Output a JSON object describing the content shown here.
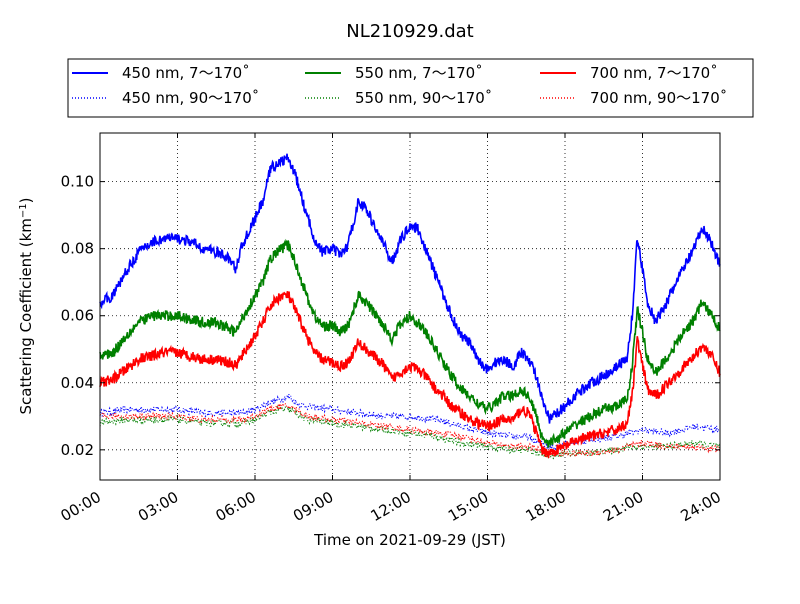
{
  "chart_data": {
    "type": "line",
    "title": "NL210929.dat",
    "xlabel": "Time on 2021-09-29 (JST)",
    "ylabel": "Scattering Coefficient (km",
    "ylabel_sup": "−1",
    "ylabel_close": ")",
    "x_unit": "hours",
    "xlim": [
      0,
      24
    ],
    "ylim": [
      0.011,
      0.1145
    ],
    "x_ticks": [
      0,
      3,
      6,
      9,
      12,
      15,
      18,
      21,
      24
    ],
    "x_tick_labels": [
      "00:00",
      "03:00",
      "06:00",
      "09:00",
      "12:00",
      "15:00",
      "18:00",
      "21:00",
      "24:00"
    ],
    "y_ticks": [
      0.02,
      0.04,
      0.06,
      0.08,
      0.1
    ],
    "y_tick_labels": [
      "0.02",
      "0.04",
      "0.06",
      "0.08",
      "0.10"
    ],
    "grid": true,
    "legend_position": "top",
    "legend_columns": 3,
    "series": [
      {
        "name": "450 nm, 7～170˚",
        "color": "#0000ff",
        "style": "solid",
        "x": [
          0,
          0.5,
          1,
          1.5,
          2,
          2.5,
          3,
          3.5,
          4,
          4.5,
          5,
          5.25,
          5.5,
          6,
          6.3,
          6.6,
          7,
          7.3,
          7.6,
          8,
          8.3,
          8.6,
          9,
          9.3,
          9.6,
          10,
          10.3,
          10.6,
          11,
          11.3,
          11.6,
          12,
          12.3,
          12.6,
          13,
          13.3,
          13.6,
          14,
          14.3,
          14.6,
          15,
          15.3,
          15.6,
          16,
          16.3,
          16.6,
          16.9,
          17.1,
          17.4,
          18,
          18.5,
          19,
          19.5,
          20,
          20.4,
          20.6,
          20.8,
          21,
          21.2,
          21.5,
          22,
          22.5,
          23,
          23.3,
          23.6,
          24
        ],
        "y": [
          0.064,
          0.066,
          0.073,
          0.079,
          0.082,
          0.083,
          0.083,
          0.082,
          0.08,
          0.079,
          0.077,
          0.074,
          0.081,
          0.089,
          0.094,
          0.104,
          0.106,
          0.107,
          0.101,
          0.09,
          0.083,
          0.079,
          0.08,
          0.078,
          0.081,
          0.094,
          0.092,
          0.087,
          0.081,
          0.076,
          0.082,
          0.087,
          0.086,
          0.08,
          0.072,
          0.066,
          0.06,
          0.054,
          0.052,
          0.047,
          0.044,
          0.046,
          0.047,
          0.045,
          0.049,
          0.047,
          0.042,
          0.035,
          0.029,
          0.033,
          0.037,
          0.04,
          0.042,
          0.045,
          0.047,
          0.06,
          0.083,
          0.074,
          0.064,
          0.058,
          0.065,
          0.073,
          0.08,
          0.086,
          0.083,
          0.075
        ]
      },
      {
        "name": "550 nm, 7～170˚",
        "color": "#008000",
        "style": "solid",
        "x": [
          0,
          0.5,
          1,
          1.5,
          2,
          2.5,
          3,
          3.5,
          4,
          4.5,
          5,
          5.25,
          5.5,
          6,
          6.3,
          6.6,
          7,
          7.3,
          7.6,
          8,
          8.3,
          8.6,
          9,
          9.3,
          9.6,
          10,
          10.3,
          10.6,
          11,
          11.3,
          11.6,
          12,
          12.3,
          12.6,
          13,
          13.3,
          13.6,
          14,
          14.3,
          14.6,
          15,
          15.3,
          15.6,
          16,
          16.3,
          16.6,
          16.9,
          17.1,
          17.4,
          18,
          18.5,
          19,
          19.5,
          20,
          20.4,
          20.6,
          20.8,
          21,
          21.2,
          21.5,
          22,
          22.5,
          23,
          23.3,
          23.6,
          24
        ],
        "y": [
          0.048,
          0.049,
          0.054,
          0.058,
          0.06,
          0.06,
          0.06,
          0.059,
          0.058,
          0.058,
          0.056,
          0.055,
          0.059,
          0.066,
          0.07,
          0.077,
          0.08,
          0.081,
          0.075,
          0.066,
          0.06,
          0.057,
          0.057,
          0.055,
          0.057,
          0.066,
          0.064,
          0.061,
          0.057,
          0.053,
          0.057,
          0.06,
          0.058,
          0.055,
          0.05,
          0.046,
          0.042,
          0.038,
          0.036,
          0.034,
          0.032,
          0.034,
          0.036,
          0.036,
          0.038,
          0.036,
          0.03,
          0.024,
          0.022,
          0.025,
          0.028,
          0.03,
          0.032,
          0.033,
          0.035,
          0.045,
          0.062,
          0.055,
          0.047,
          0.043,
          0.048,
          0.054,
          0.059,
          0.064,
          0.061,
          0.056
        ]
      },
      {
        "name": "700 nm, 7～170˚",
        "color": "#ff0000",
        "style": "solid",
        "x": [
          0,
          0.5,
          1,
          1.5,
          2,
          2.5,
          3,
          3.5,
          4,
          4.5,
          5,
          5.25,
          5.5,
          6,
          6.3,
          6.6,
          7,
          7.3,
          7.6,
          8,
          8.3,
          8.6,
          9,
          9.3,
          9.6,
          10,
          10.3,
          10.6,
          11,
          11.3,
          11.6,
          12,
          12.3,
          12.6,
          13,
          13.3,
          13.6,
          14,
          14.3,
          14.6,
          15,
          15.3,
          15.6,
          16,
          16.3,
          16.6,
          16.9,
          17.1,
          17.4,
          18,
          18.5,
          19,
          19.5,
          20,
          20.4,
          20.6,
          20.8,
          21,
          21.2,
          21.5,
          22,
          22.5,
          23,
          23.3,
          23.6,
          24
        ],
        "y": [
          0.04,
          0.041,
          0.044,
          0.047,
          0.048,
          0.049,
          0.049,
          0.048,
          0.047,
          0.047,
          0.046,
          0.045,
          0.048,
          0.054,
          0.058,
          0.063,
          0.066,
          0.066,
          0.061,
          0.054,
          0.049,
          0.047,
          0.046,
          0.045,
          0.046,
          0.052,
          0.05,
          0.048,
          0.045,
          0.041,
          0.043,
          0.045,
          0.044,
          0.042,
          0.038,
          0.036,
          0.033,
          0.031,
          0.029,
          0.028,
          0.027,
          0.028,
          0.029,
          0.029,
          0.032,
          0.031,
          0.025,
          0.02,
          0.019,
          0.021,
          0.023,
          0.024,
          0.025,
          0.026,
          0.028,
          0.036,
          0.053,
          0.045,
          0.038,
          0.036,
          0.04,
          0.044,
          0.048,
          0.051,
          0.049,
          0.043
        ]
      },
      {
        "name": "450 nm, 90～170˚",
        "color": "#0000ff",
        "style": "dotted",
        "x": [
          0,
          1,
          2,
          3,
          4,
          5,
          5.5,
          6,
          6.5,
          7,
          7.3,
          7.6,
          8,
          9,
          10,
          11,
          12,
          13,
          14,
          15,
          16,
          16.5,
          17,
          17.5,
          18,
          19,
          20,
          20.5,
          21,
          22,
          23,
          24
        ],
        "y": [
          0.031,
          0.032,
          0.032,
          0.032,
          0.031,
          0.031,
          0.031,
          0.032,
          0.034,
          0.035,
          0.036,
          0.034,
          0.033,
          0.032,
          0.031,
          0.03,
          0.03,
          0.029,
          0.027,
          0.025,
          0.024,
          0.024,
          0.022,
          0.021,
          0.022,
          0.023,
          0.024,
          0.025,
          0.026,
          0.025,
          0.027,
          0.026
        ]
      },
      {
        "name": "550 nm, 90～170˚",
        "color": "#008000",
        "style": "dotted",
        "x": [
          0,
          1,
          2,
          3,
          4,
          5,
          5.5,
          6,
          6.5,
          7,
          7.3,
          7.6,
          8,
          9,
          10,
          11,
          12,
          13,
          14,
          15,
          16,
          16.5,
          17,
          17.5,
          18,
          19,
          20,
          20.5,
          21,
          22,
          23,
          24
        ],
        "y": [
          0.028,
          0.029,
          0.029,
          0.029,
          0.028,
          0.028,
          0.028,
          0.029,
          0.031,
          0.032,
          0.032,
          0.031,
          0.029,
          0.028,
          0.027,
          0.026,
          0.025,
          0.024,
          0.022,
          0.021,
          0.02,
          0.02,
          0.019,
          0.018,
          0.019,
          0.019,
          0.02,
          0.021,
          0.021,
          0.021,
          0.022,
          0.021
        ]
      },
      {
        "name": "700 nm, 90～170˚",
        "color": "#ff0000",
        "style": "dotted",
        "x": [
          0,
          1,
          2,
          3,
          4,
          5,
          5.5,
          6,
          6.5,
          7,
          7.3,
          7.6,
          8,
          9,
          10,
          11,
          12,
          13,
          14,
          15,
          16,
          16.5,
          17,
          17.5,
          18,
          19,
          20,
          20.5,
          21,
          22,
          23,
          24
        ],
        "y": [
          0.03,
          0.03,
          0.03,
          0.03,
          0.029,
          0.029,
          0.029,
          0.03,
          0.032,
          0.033,
          0.033,
          0.032,
          0.03,
          0.029,
          0.028,
          0.027,
          0.026,
          0.025,
          0.024,
          0.022,
          0.021,
          0.021,
          0.02,
          0.019,
          0.019,
          0.019,
          0.02,
          0.021,
          0.022,
          0.021,
          0.021,
          0.02
        ]
      }
    ]
  }
}
